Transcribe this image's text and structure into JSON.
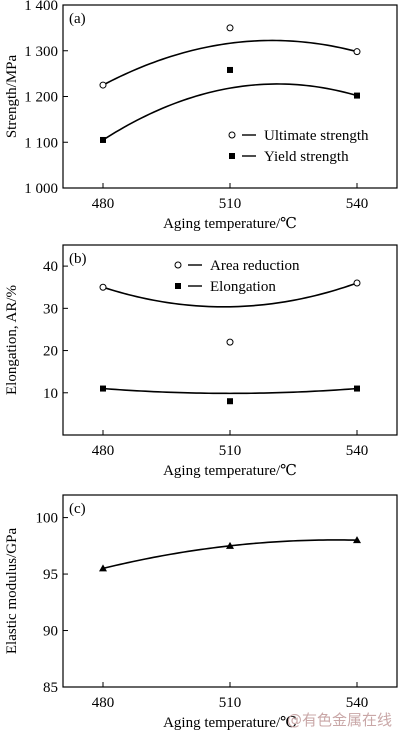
{
  "watermark": "@有色金属在线",
  "chart_data": [
    {
      "type": "line",
      "panel": "(a)",
      "xlabel": "Aging temperature/℃",
      "ylabel": "Strength/MPa",
      "x": [
        480,
        510,
        540
      ],
      "xticks": [
        "480",
        "510",
        "540"
      ],
      "ylim": [
        1000,
        1400
      ],
      "yticks": [
        1000,
        1100,
        1200,
        1300,
        1400
      ],
      "ytick_labels": [
        "1 000",
        "1 100",
        "1 200",
        "1 300",
        "1 400"
      ],
      "legend_position": "bottom-right",
      "series": [
        {
          "name": "Ultimate strength",
          "marker": "open-circle",
          "values": [
            1225,
            1350,
            1298
          ]
        },
        {
          "name": "Yield strength",
          "marker": "filled-square",
          "values": [
            1105,
            1258,
            1202
          ]
        }
      ]
    },
    {
      "type": "line",
      "panel": "(b)",
      "xlabel": "Aging temperature/℃",
      "ylabel": "Elongation, AR/%",
      "x": [
        480,
        510,
        540
      ],
      "xticks": [
        "480",
        "510",
        "540"
      ],
      "ylim": [
        0,
        45
      ],
      "yticks": [
        10,
        20,
        30,
        40
      ],
      "ytick_labels": [
        "10",
        "20",
        "30",
        "40"
      ],
      "legend_position": "top-center",
      "series": [
        {
          "name": "Area reduction",
          "marker": "open-circle",
          "values": [
            35,
            22,
            36
          ]
        },
        {
          "name": "Elongation",
          "marker": "filled-square",
          "values": [
            11,
            8,
            11
          ]
        }
      ]
    },
    {
      "type": "line",
      "panel": "(c)",
      "xlabel": "Aging temperature/℃",
      "ylabel": "Elastic modulus/GPa",
      "x": [
        480,
        510,
        540
      ],
      "xticks": [
        "480",
        "510",
        "540"
      ],
      "ylim": [
        85,
        102
      ],
      "yticks": [
        85,
        90,
        95,
        100
      ],
      "ytick_labels": [
        "85",
        "90",
        "95",
        "100"
      ],
      "legend_position": "none",
      "series": [
        {
          "marker": "filled-triangle",
          "values": [
            95.5,
            97.5,
            98
          ]
        }
      ]
    }
  ]
}
